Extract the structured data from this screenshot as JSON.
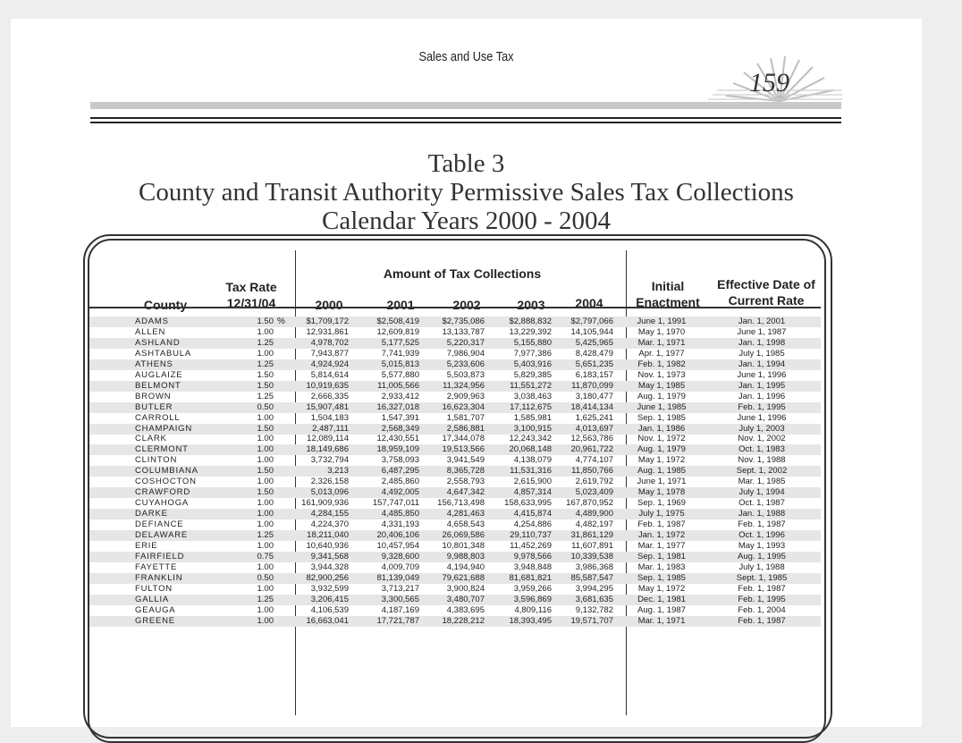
{
  "page": {
    "header": "Sales and Use Tax",
    "page_number": "159"
  },
  "title": {
    "line1": "Table 3",
    "line2": "County and Transit Authority Permissive Sales Tax Collections",
    "line3": "Calendar Years 2000 - 2004"
  },
  "table": {
    "headers": {
      "county": "County",
      "tax_rate_line1": "Tax Rate",
      "tax_rate_line2": "12/31/04",
      "amount_group": "Amount of Tax Collections",
      "y2000": "2000",
      "y2001": "2001",
      "y2002": "2002",
      "y2003": "2003",
      "y2004": "2004",
      "initial_line1": "Initial",
      "initial_line2": "Enactment",
      "effective_line1": "Effective Date of",
      "effective_line2": "Current Rate"
    },
    "percent_sign": "%",
    "rows": [
      [
        "ADAMS",
        "1.50",
        "$1,709,172",
        "$2,508,419",
        "$2,735,086",
        "$2,888,832",
        "$2,797,066",
        "June 1, 1991",
        "Jan. 1, 2001"
      ],
      [
        "ALLEN",
        "1.00",
        "12,931,861",
        "12,609,819",
        "13,133,787",
        "13,229,392",
        "14,105,944",
        "May 1, 1970",
        "June 1, 1987"
      ],
      [
        "ASHLAND",
        "1.25",
        "4,978,702",
        "5,177,525",
        "5,220,317",
        "5,155,880",
        "5,425,965",
        "Mar. 1, 1971",
        "Jan. 1, 1998"
      ],
      [
        "ASHTABULA",
        "1.00",
        "7,943,877",
        "7,741,939",
        "7,986,904",
        "7,977,386",
        "8,428,479",
        "Apr. 1, 1977",
        "July 1, 1985"
      ],
      [
        "ATHENS",
        "1.25",
        "4,924,924",
        "5,015,813",
        "5,233,606",
        "5,403,916",
        "5,651,235",
        "Feb. 1, 1982",
        "Jan. 1, 1994"
      ],
      [
        "AUGLAIZE",
        "1.50",
        "5,814,614",
        "5,577,880",
        "5,503,873",
        "5,829,385",
        "6,183,157",
        "Nov. 1, 1973",
        "June 1, 1996"
      ],
      [
        "BELMONT",
        "1.50",
        "10,919,635",
        "11,005,566",
        "11,324,956",
        "11,551,272",
        "11,870,099",
        "May 1, 1985",
        "Jan. 1, 1995"
      ],
      [
        "BROWN",
        "1.25",
        "2,666,335",
        "2,933,412",
        "2,909,963",
        "3,038,463",
        "3,180,477",
        "Aug. 1, 1979",
        "Jan. 1, 1996"
      ],
      [
        "BUTLER",
        "0.50",
        "15,907,481",
        "16,327,018",
        "16,623,304",
        "17,112,675",
        "18,414,134",
        "June 1, 1985",
        "Feb. 1, 1995"
      ],
      [
        "CARROLL",
        "1.00",
        "1,504,183",
        "1,547,391",
        "1,581,707",
        "1,585,981",
        "1,625,241",
        "Sep. 1, 1985",
        "June 1, 1996"
      ],
      [
        "CHAMPAIGN",
        "1.50",
        "2,487,111",
        "2,568,349",
        "2,586,881",
        "3,100,915",
        "4,013,697",
        "Jan. 1, 1986",
        "July 1, 2003"
      ],
      [
        "CLARK",
        "1.00",
        "12,089,114",
        "12,430,551",
        "17,344,078",
        "12,243,342",
        "12,563,786",
        "Nov. 1, 1972",
        "Nov. 1, 2002"
      ],
      [
        "CLERMONT",
        "1.00",
        "18,149,686",
        "18,959,109",
        "19,513,566",
        "20,068,148",
        "20,961,722",
        "Aug. 1, 1979",
        "Oct. 1, 1983"
      ],
      [
        "CLINTON",
        "1.00",
        "3,732,794",
        "3,758,093",
        "3,941,549",
        "4,138,079",
        "4,774,107",
        "May 1, 1972",
        "Nov. 1, 1988"
      ],
      [
        "COLUMBIANA",
        "1.50",
        "3,213",
        "6,487,295",
        "8,365,728",
        "11,531,316",
        "11,850,766",
        "Aug. 1, 1985",
        "Sept. 1, 2002"
      ],
      [
        "COSHOCTON",
        "1.00",
        "2,326,158",
        "2,485,860",
        "2,558,793",
        "2,615,900",
        "2,619,792",
        "June 1, 1971",
        "Mar. 1, 1985"
      ],
      [
        "CRAWFORD",
        "1.50",
        "5,013,096",
        "4,492,005",
        "4,647,342",
        "4,857,314",
        "5,023,409",
        "May 1, 1978",
        "July 1, 1994"
      ],
      [
        "CUYAHOGA",
        "1.00",
        "161,909,936",
        "157,747,011",
        "156,713,498",
        "158,633,995",
        "167,870,952",
        "Sep. 1, 1969",
        "Oct. 1, 1987"
      ],
      [
        "DARKE",
        "1.00",
        "4,284,155",
        "4,485,850",
        "4,281,463",
        "4,415,874",
        "4,489,900",
        "July 1, 1975",
        "Jan. 1, 1988"
      ],
      [
        "DEFIANCE",
        "1.00",
        "4,224,370",
        "4,331,193",
        "4,658,543",
        "4,254,886",
        "4,482,197",
        "Feb. 1, 1987",
        "Feb. 1, 1987"
      ],
      [
        "DELAWARE",
        "1.25",
        "18,211,040",
        "20,406,106",
        "26,069,586",
        "29,110,737",
        "31,861,129",
        "Jan. 1, 1972",
        "Oct. 1, 1996"
      ],
      [
        "ERIE",
        "1.00",
        "10,640,936",
        "10,457,954",
        "10,801,348",
        "11,452,269",
        "11,607,891",
        "Mar. 1, 1977",
        "May 1, 1993"
      ],
      [
        "FAIRFIELD",
        "0.75",
        "9,341,568",
        "9,328,600",
        "9,988,803",
        "9,978,566",
        "10,339,538",
        "Sep. 1, 1981",
        "Aug. 1, 1995"
      ],
      [
        "FAYETTE",
        "1.00",
        "3,944,328",
        "4,009,709",
        "4,194,940",
        "3,948,848",
        "3,986,368",
        "Mar. 1, 1983",
        "July 1, 1988"
      ],
      [
        "FRANKLIN",
        "0.50",
        "82,900,256",
        "81,139,049",
        "79,621,688",
        "81,681,821",
        "85,587,547",
        "Sep. 1, 1985",
        "Sept. 1, 1985"
      ],
      [
        "FULTON",
        "1.00",
        "3,932,599",
        "3,713,217",
        "3,900,824",
        "3,959,266",
        "3,994,295",
        "May 1, 1972",
        "Feb. 1, 1987"
      ],
      [
        "GALLIA",
        "1.25",
        "3,206,415",
        "3,300,565",
        "3,480,707",
        "3,596,869",
        "3,681,635",
        "Dec. 1, 1981",
        "Feb. 1, 1995"
      ],
      [
        "GEAUGA",
        "1.00",
        "4,106,539",
        "4,187,169",
        "4,383,695",
        "4,809,116",
        "9,132,782",
        "Aug. 1, 1987",
        "Feb. 1, 2004"
      ],
      [
        "GREENE",
        "1.00",
        "16,663,041",
        "17,721,787",
        "18,228,212",
        "18,393,495",
        "19,571,707",
        "Mar. 1, 1971",
        "Feb. 1, 1987"
      ]
    ]
  }
}
